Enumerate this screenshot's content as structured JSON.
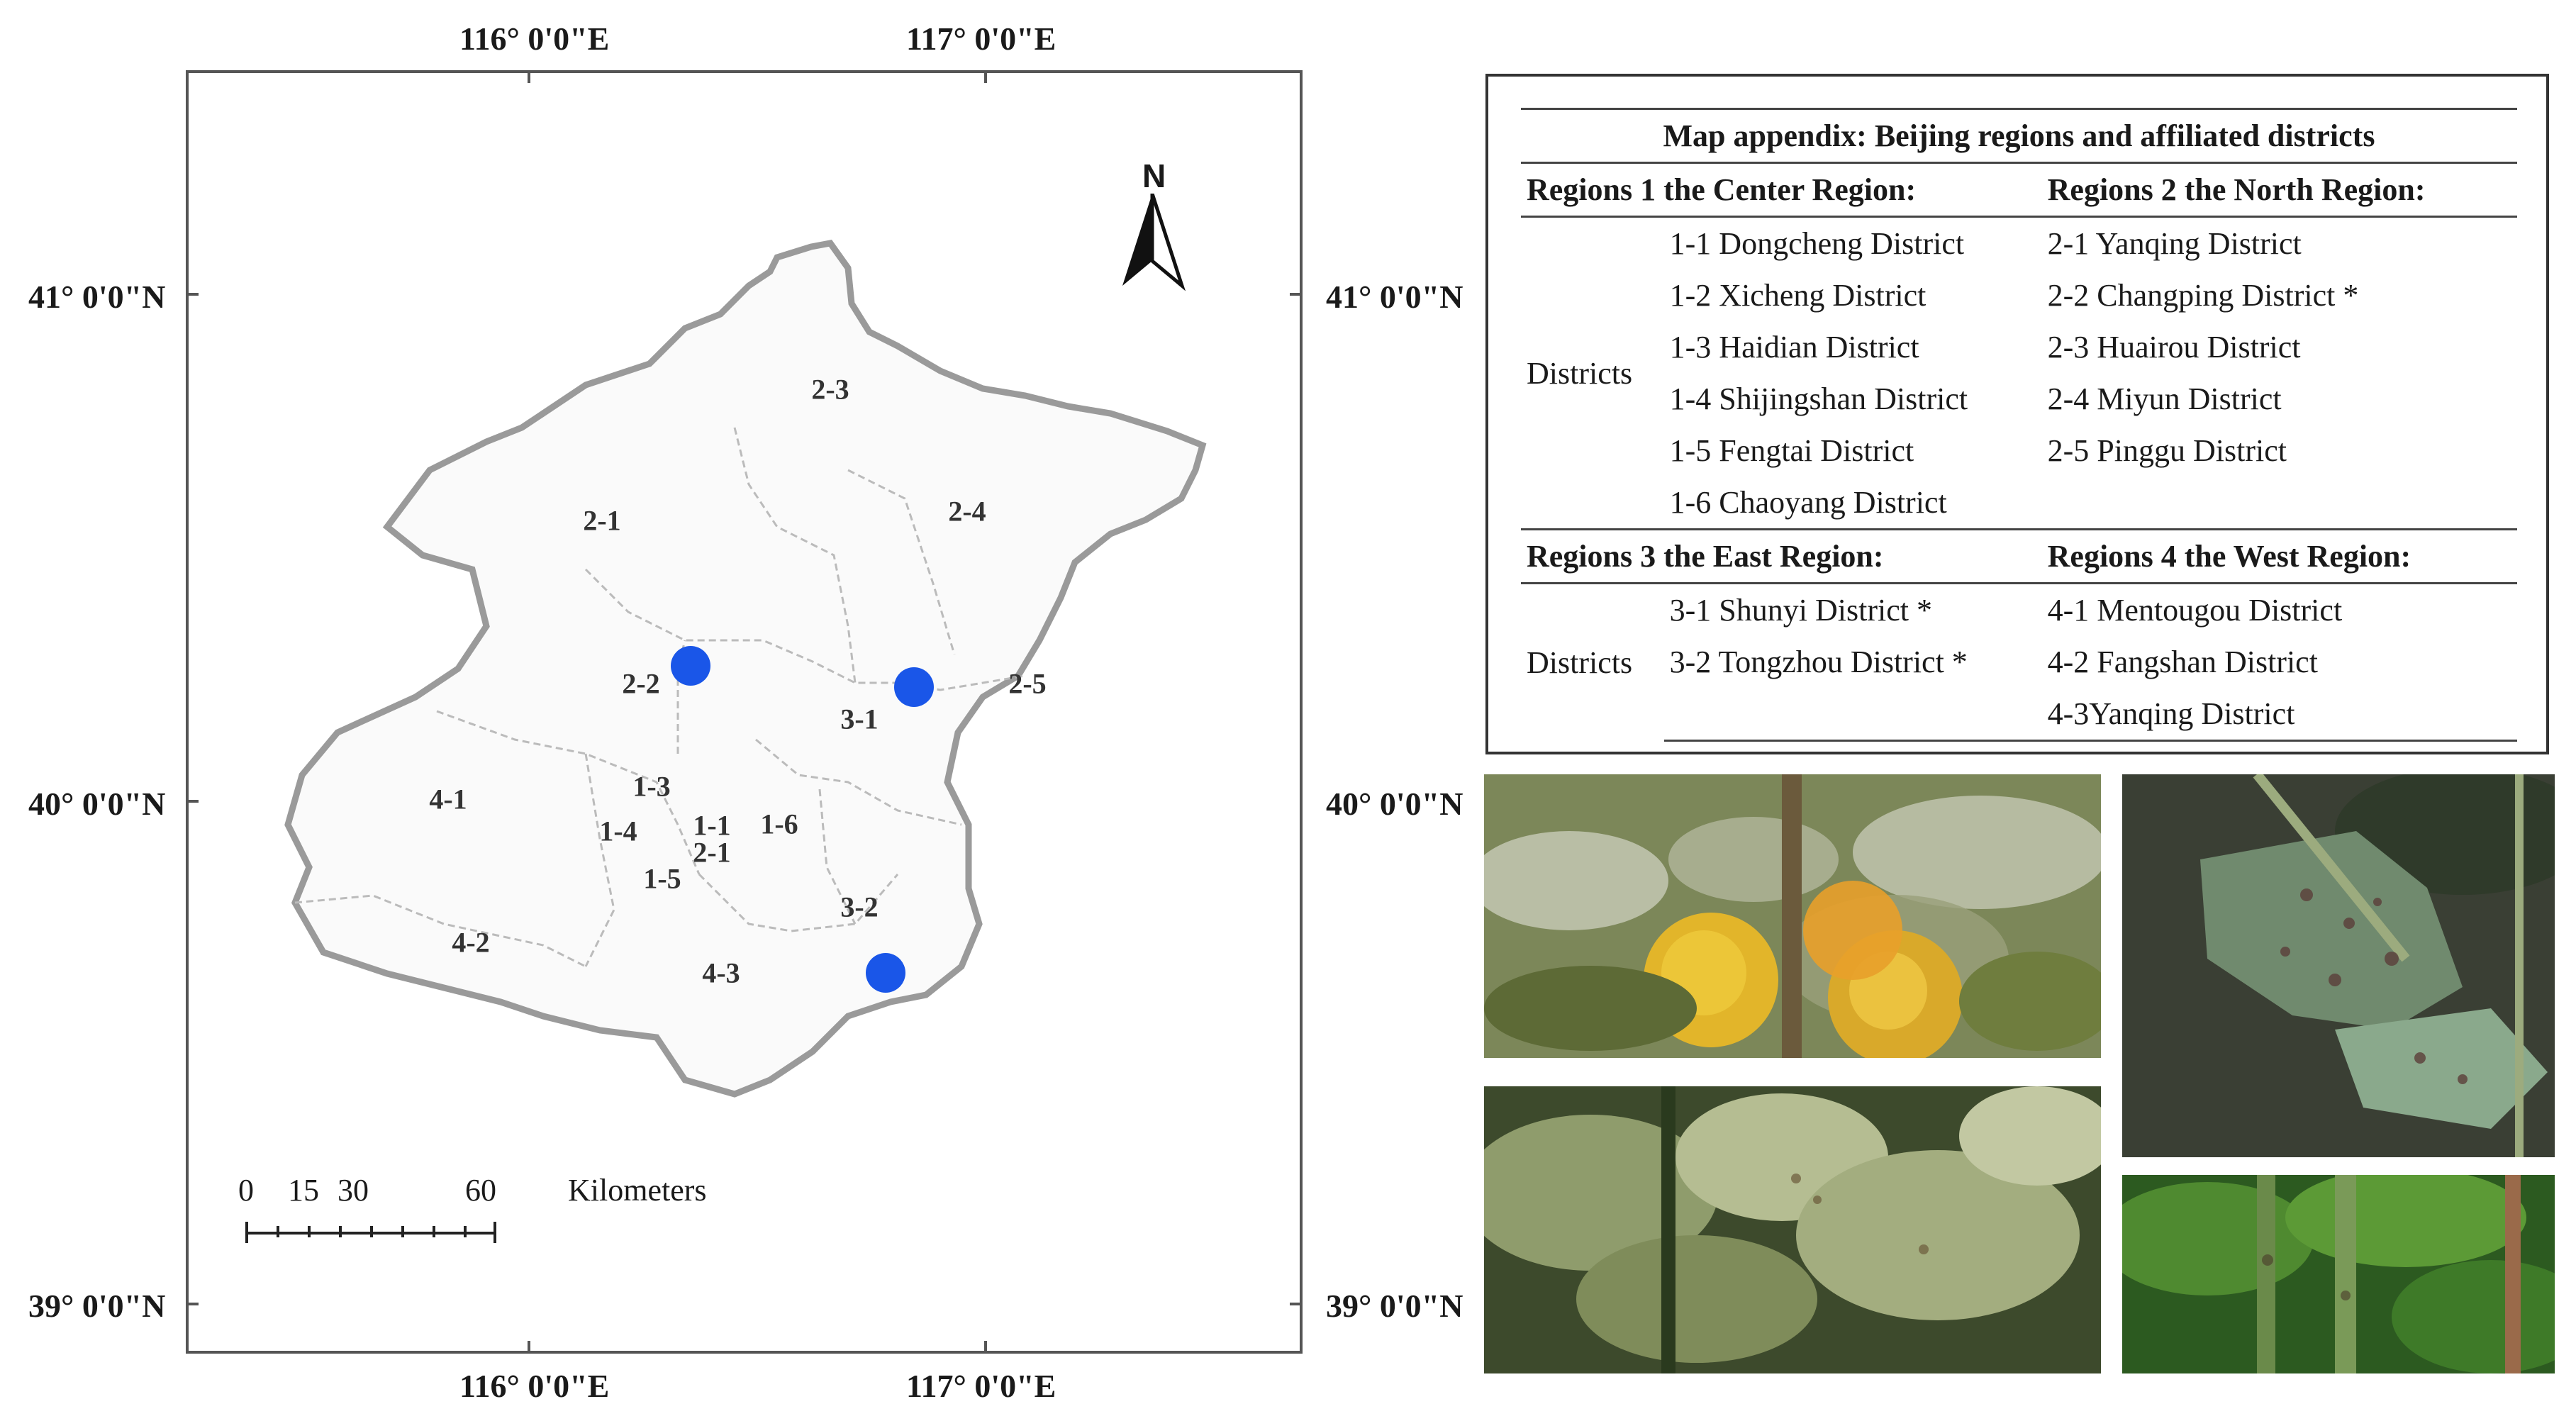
{
  "coordinates": {
    "top_lon": [
      "116° 0'0\"E",
      "117° 0'0\"E"
    ],
    "bottom_lon": [
      "116° 0'0\"E",
      "117° 0'0\"E"
    ],
    "left_lat": [
      "41° 0'0\"N",
      "40° 0'0\"N",
      "39° 0'0\"N"
    ],
    "right_lat": [
      "41° 0'0\"N",
      "40° 0'0\"N",
      "39° 0'0\"N"
    ]
  },
  "map": {
    "north_label": "N",
    "district_labels": [
      "2-3",
      "2-1",
      "2-4",
      "2-2",
      "2-5",
      "3-1",
      "1-3",
      "4-1",
      "1-4",
      "1-1",
      "2-1",
      "1-6",
      "1-5",
      "3-2",
      "4-2",
      "4-3"
    ],
    "scale_bar": {
      "ticks": [
        "0",
        "15",
        "30",
        "60"
      ],
      "unit": "Kilometers"
    },
    "site_marker_color": "#1a56e8"
  },
  "legend": {
    "title": "Map appendix: Beijing regions and affiliated districts",
    "region1_header": "Regions 1 the Center Region:",
    "region2_header": "Regions 2 the North Region:",
    "region3_header": "Regions 3 the East Region:",
    "region4_header": "Regions 4 the West Region:",
    "districts_label": "Districts",
    "region1": [
      "1-1 Dongcheng District",
      "1-2 Xicheng District",
      "1-3 Haidian District",
      "1-4 Shijingshan District",
      "1-5 Fengtai District",
      "1-6 Chaoyang District"
    ],
    "region2": [
      "2-1 Yanqing District",
      "2-2 Changping District *",
      "2-3 Huairou District",
      "2-4 Miyun District",
      "2-5 Pinggu District"
    ],
    "region3": [
      "3-1 Shunyi District *",
      "3-2 Tongzhou District *"
    ],
    "region4": [
      "4-1 Mentougou District",
      "4-2 Fangshan District",
      "4-3Yanqing District"
    ]
  },
  "photos": [
    "tomato-fruit-disease-photo",
    "tomato-leaf-spot-photo",
    "tomato-foliage-photo",
    "tomato-stem-photo"
  ]
}
